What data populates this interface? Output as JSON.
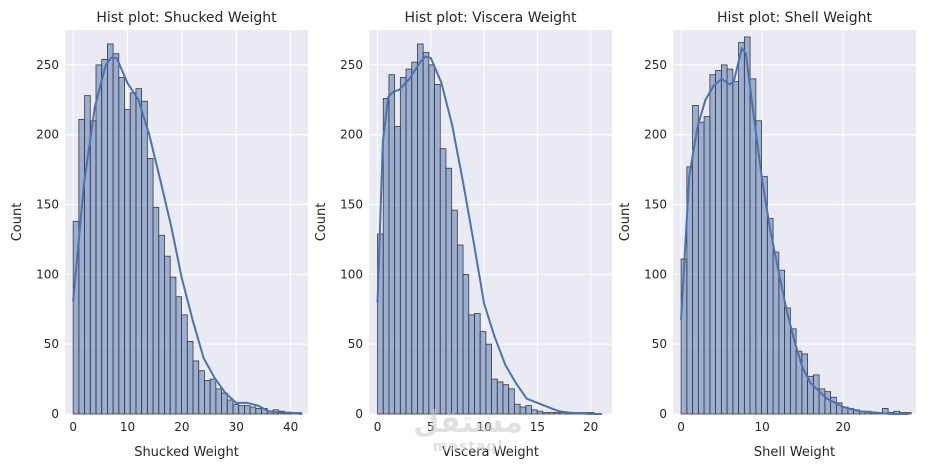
{
  "chart_data": [
    {
      "type": "bar",
      "title": "Hist plot: Shucked Weight",
      "xlabel": "Shucked Weight",
      "ylabel": "Count",
      "xlim": [
        -1.5,
        43.2
      ],
      "ylim": [
        0,
        275
      ],
      "xticks": [
        0,
        10,
        20,
        30,
        40
      ],
      "yticks": [
        0,
        50,
        100,
        150,
        200,
        250
      ],
      "grid": true,
      "bin_start": 0,
      "bin_width": 1.05,
      "values": [
        138,
        211,
        228,
        210,
        250,
        254,
        265,
        258,
        241,
        218,
        230,
        233,
        224,
        183,
        148,
        128,
        113,
        98,
        84,
        71,
        52,
        38,
        31,
        24,
        25,
        18,
        15,
        10,
        7,
        6,
        6,
        5,
        4,
        4,
        2,
        3,
        2,
        1,
        1,
        1
      ],
      "kde": {
        "x": [
          0,
          2,
          4,
          6,
          7,
          8,
          10,
          12,
          14,
          16,
          18,
          20,
          22,
          24,
          26,
          28,
          30,
          32,
          34,
          36,
          38,
          40,
          42
        ],
        "y": [
          81,
          165,
          220,
          250,
          255,
          255,
          237,
          225,
          200,
          168,
          135,
          97,
          67,
          40,
          26,
          15,
          8,
          8,
          6,
          2,
          1,
          1,
          0
        ]
      }
    },
    {
      "type": "bar",
      "title": "Hist plot: Viscera Weight",
      "xlabel": "Viscera Weight",
      "ylabel": "Count",
      "xlim": [
        -0.8,
        22.0
      ],
      "ylim": [
        0,
        275
      ],
      "xticks": [
        0,
        5,
        10,
        15,
        20
      ],
      "yticks": [
        0,
        50,
        100,
        150,
        200,
        250
      ],
      "grid": true,
      "bin_start": 0,
      "bin_width": 0.535,
      "values": [
        129,
        226,
        243,
        206,
        241,
        247,
        252,
        265,
        259,
        250,
        236,
        190,
        176,
        146,
        121,
        100,
        71,
        72,
        59,
        50,
        25,
        23,
        21,
        18,
        7,
        5,
        6,
        3,
        2,
        1,
        1,
        1,
        1,
        1,
        1,
        1,
        1,
        1,
        0,
        0
      ],
      "kde": {
        "x": [
          0,
          0.5,
          1,
          1.5,
          2,
          3,
          4,
          4.5,
          5,
          6,
          7,
          8,
          9,
          10,
          11,
          12,
          13,
          14,
          15,
          16,
          17,
          18,
          20,
          21
        ],
        "y": [
          80,
          195,
          227,
          231,
          232,
          240,
          252,
          256,
          255,
          237,
          207,
          167,
          124,
          79,
          55,
          35,
          22,
          11,
          8,
          5,
          2,
          1,
          0,
          0
        ]
      }
    },
    {
      "type": "bar",
      "title": "Hist plot: Shell Weight",
      "xlabel": "Shell Weight",
      "ylabel": "Count",
      "xlim": [
        -1.0,
        29.0
      ],
      "ylim": [
        0,
        275
      ],
      "xticks": [
        0,
        10,
        20
      ],
      "yticks": [
        0,
        50,
        100,
        150,
        200,
        250
      ],
      "grid": true,
      "bin_start": 0,
      "bin_width": 0.71,
      "values": [
        111,
        177,
        221,
        209,
        213,
        243,
        246,
        250,
        247,
        238,
        266,
        270,
        240,
        210,
        170,
        140,
        116,
        103,
        76,
        61,
        45,
        43,
        27,
        28,
        18,
        16,
        12,
        8,
        5,
        4,
        3,
        2,
        2,
        1,
        1,
        4,
        1,
        2,
        1,
        1
      ],
      "kde": {
        "x": [
          0,
          1,
          2,
          3,
          4,
          5,
          6,
          6.5,
          7,
          7.5,
          8,
          9,
          10,
          11,
          12,
          13,
          14,
          15,
          16,
          18,
          20,
          22,
          24,
          26,
          28
        ],
        "y": [
          68,
          170,
          205,
          225,
          235,
          240,
          236,
          238,
          250,
          262,
          258,
          212,
          168,
          132,
          103,
          75,
          52,
          33,
          22,
          11,
          5,
          2,
          1,
          0,
          0
        ]
      }
    }
  ]
}
